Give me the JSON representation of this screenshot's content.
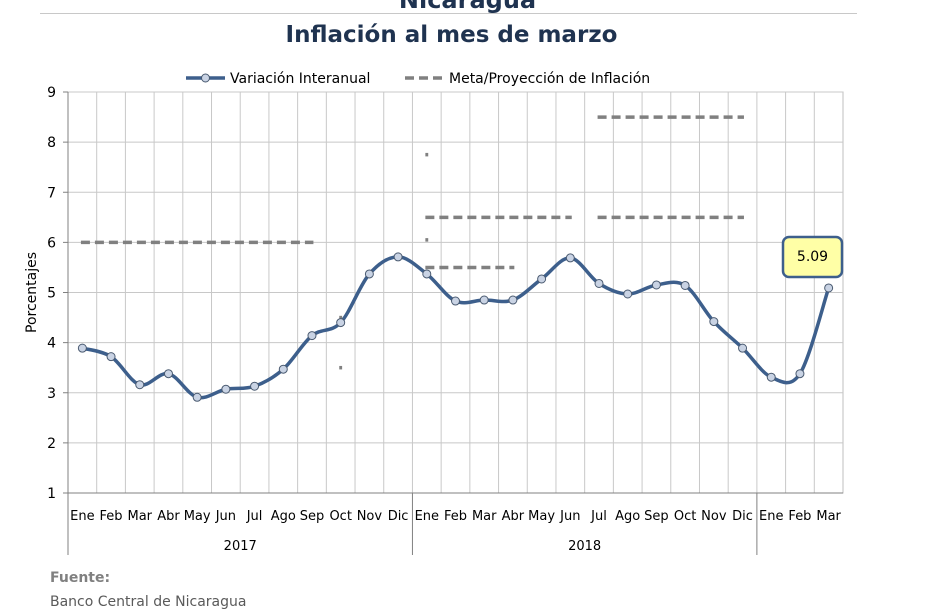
{
  "header": {
    "country": "Nicaragua",
    "title": "Inflación al mes de marzo"
  },
  "source": {
    "label": "Fuente:",
    "value": "Banco Central de Nicaragua"
  },
  "colors": {
    "series_line": "#3d5f8c",
    "marker_fill": "#c9d3e4",
    "target_dash": "#808080",
    "grid": "#c8c8c8",
    "callout_fill": "#ffffa6",
    "callout_border": "#3d5f8c"
  },
  "chart_data": {
    "type": "line",
    "ylabel": "Porcentajes",
    "ylim": [
      1,
      9
    ],
    "yticks": [
      1,
      2,
      3,
      4,
      5,
      6,
      7,
      8,
      9
    ],
    "grid": true,
    "legend_position": "top",
    "categories": [
      "Ene",
      "Feb",
      "Mar",
      "Abr",
      "May",
      "Jun",
      "Jul",
      "Ago",
      "Sep",
      "Oct",
      "Nov",
      "Dic",
      "Ene",
      "Feb",
      "Mar",
      "Abr",
      "May",
      "Jun",
      "Jul",
      "Ago",
      "Sep",
      "Oct",
      "Nov",
      "Dic",
      "Ene",
      "Feb",
      "Mar"
    ],
    "year_groups": [
      {
        "label": "2017",
        "start": 0,
        "end": 11
      },
      {
        "label": "2018",
        "start": 12,
        "end": 23
      }
    ],
    "series": [
      {
        "name": "Variación Interanual",
        "style": "line-markers",
        "values": [
          3.89,
          3.72,
          3.16,
          3.38,
          2.91,
          3.07,
          3.13,
          3.47,
          4.14,
          4.4,
          5.37,
          5.71,
          5.37,
          4.83,
          4.85,
          4.85,
          5.27,
          5.69,
          5.18,
          4.97,
          5.15,
          5.14,
          4.42,
          3.89,
          3.31,
          3.38,
          5.09
        ]
      },
      {
        "name": "Meta/Proyección de Inflación",
        "style": "dashed",
        "segments": [
          {
            "from": 0,
            "to": 8,
            "value": 6.0
          },
          {
            "from": 9,
            "to": 9,
            "value": 4.5
          },
          {
            "from": 9,
            "to": 9,
            "value": 3.5
          },
          {
            "from": 12,
            "to": 12,
            "value": 7.75
          },
          {
            "from": 12,
            "to": 17,
            "value": 6.5
          },
          {
            "from": 12,
            "to": 12,
            "value": 6.05
          },
          {
            "from": 12,
            "to": 15,
            "value": 5.5
          },
          {
            "from": 18,
            "to": 23,
            "value": 8.5
          },
          {
            "from": 18,
            "to": 23,
            "value": 6.5
          }
        ]
      }
    ],
    "annotations": [
      {
        "label": "5.09",
        "point_index": 26
      }
    ]
  }
}
